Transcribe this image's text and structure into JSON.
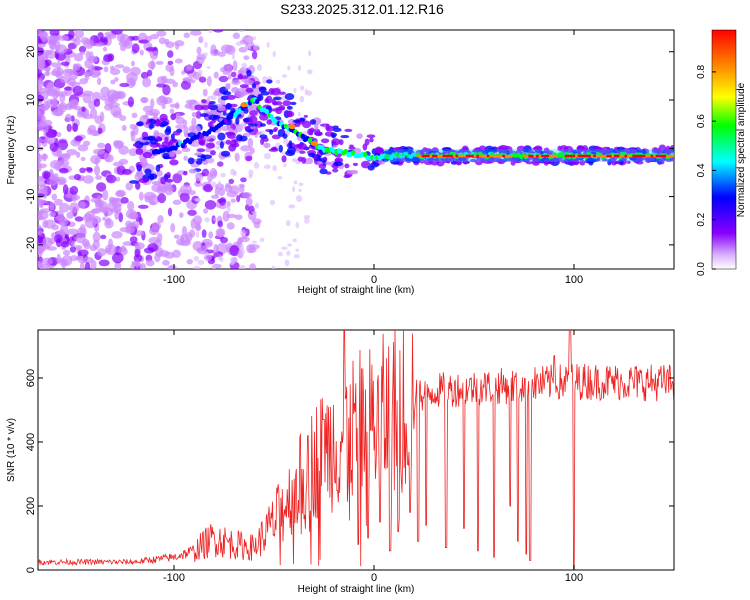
{
  "figure_title": "S233.2025.312.01.12.R16",
  "chart_data": [
    {
      "type": "heatmap",
      "title": "S233.2025.312.01.12.R16",
      "xlabel": "Height of straight line (km)",
      "ylabel": "Frequency (Hz)",
      "xlim": [
        -168,
        150
      ],
      "ylim": [
        -25,
        24.5
      ],
      "xticks": [
        -100,
        0,
        100
      ],
      "yticks": [
        -20,
        -10,
        0,
        10,
        20
      ],
      "colorbar": {
        "label": "Normalized spectral amplitude",
        "range": [
          0,
          0.97
        ],
        "ticks": [
          "0.0",
          "0.2",
          "0.4",
          "0.6",
          "0.8"
        ],
        "colormap": [
          "#ffffff",
          "#cc88ff",
          "#8800ff",
          "#0000ff",
          "#00ffff",
          "#00ff00",
          "#ffff00",
          "#ff8800",
          "#ff0000"
        ]
      },
      "ridge": {
        "description_points": [
          [
            -115,
            -1
          ],
          [
            -100,
            0
          ],
          [
            -90,
            2
          ],
          [
            -80,
            4
          ],
          [
            -70,
            7
          ],
          [
            -60,
            10
          ],
          [
            -50,
            6
          ],
          [
            -42,
            4
          ],
          [
            -35,
            2
          ],
          [
            -25,
            0
          ],
          [
            -12,
            -1
          ],
          [
            0,
            -2
          ],
          [
            10,
            -1.5
          ],
          [
            25,
            -1.5
          ],
          [
            60,
            -1.5
          ],
          [
            100,
            -1.5
          ],
          [
            150,
            -1.5
          ]
        ]
      }
    },
    {
      "type": "line",
      "xlabel": "Height of straight line (km)",
      "ylabel": "SNR (10 * v/v)",
      "xlim": [
        -168,
        150
      ],
      "ylim": [
        0,
        750
      ],
      "xticks": [
        -100,
        0,
        100
      ],
      "yticks": [
        0,
        200,
        400,
        600
      ],
      "series": [
        {
          "name": "SNR",
          "color": "#ee2222",
          "envelope": [
            [
              -168,
              25
            ],
            [
              -120,
              25
            ],
            [
              -100,
              40
            ],
            [
              -90,
              60
            ],
            [
              -80,
              100
            ],
            [
              -70,
              80
            ],
            [
              -60,
              70
            ],
            [
              -50,
              150
            ],
            [
              -40,
              250
            ],
            [
              -30,
              340
            ],
            [
              -20,
              400
            ],
            [
              -10,
              440
            ],
            [
              0,
              460
            ],
            [
              10,
              500
            ],
            [
              20,
              540
            ],
            [
              30,
              560
            ],
            [
              50,
              570
            ],
            [
              80,
              580
            ],
            [
              100,
              590
            ],
            [
              150,
              585
            ]
          ],
          "spikes": [
            [
              -15,
              760
            ],
            [
              98,
              760
            ],
            [
              90,
              670
            ],
            [
              -33,
              420
            ],
            [
              -25,
              470
            ]
          ],
          "dropouts": [
            [
              -8,
              80
            ],
            [
              -3,
              100
            ],
            [
              3,
              150
            ],
            [
              8,
              60
            ],
            [
              12,
              120
            ],
            [
              18,
              180
            ],
            [
              22,
              90
            ],
            [
              26,
              140
            ],
            [
              36,
              70
            ],
            [
              45,
              130
            ],
            [
              52,
              60
            ],
            [
              60,
              40
            ],
            [
              68,
              200
            ],
            [
              72,
              90
            ],
            [
              76,
              50
            ],
            [
              78,
              30
            ],
            [
              100,
              0
            ]
          ]
        }
      ]
    }
  ]
}
